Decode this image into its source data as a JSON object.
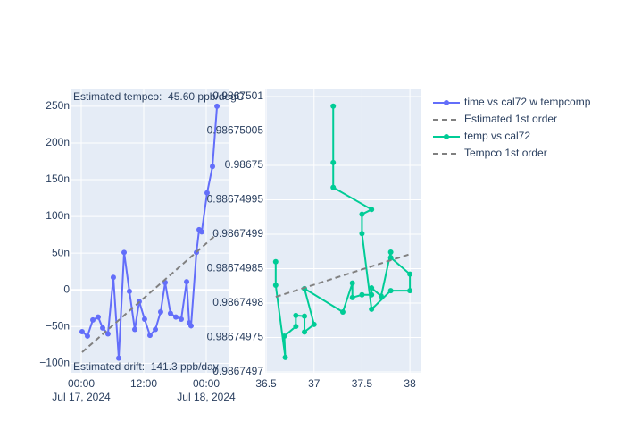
{
  "chart_data": [
    {
      "type": "line",
      "xlim": [
        "2024-07-16T22:07",
        "2024-07-18T04:17"
      ],
      "xticks": [
        {
          "value": "2024-07-17T00:00",
          "label": "00:00\nJul 17, 2024"
        },
        {
          "value": "2024-07-17T12:00",
          "label": "12:00"
        },
        {
          "value": "2024-07-18T00:00",
          "label": "00:00\nJul 18, 2024"
        }
      ],
      "ylim": [
        -113,
        273
      ],
      "yticks": [
        {
          "value": -100,
          "label": "−100n"
        },
        {
          "value": -50,
          "label": "−50n"
        },
        0,
        {
          "value": 50,
          "label": "50n"
        },
        {
          "value": 100,
          "label": "100n"
        },
        {
          "value": 150,
          "label": "150n"
        },
        {
          "value": 200,
          "label": "200n"
        },
        {
          "value": 250,
          "label": "250n"
        }
      ],
      "grid": true,
      "annotations": [
        "Estimated tempco:  45.60 ppb/degC",
        "Estimated drift:  141.3 ppb/day"
      ],
      "series": [
        {
          "name": "time vs cal72 w tempcomp",
          "color": "#636efa",
          "markers": true,
          "dash": false,
          "x": [
            "2024-07-17T00:10",
            "2024-07-17T01:12",
            "2024-07-17T02:14",
            "2024-07-17T03:15",
            "2024-07-17T04:07",
            "2024-07-17T05:08",
            "2024-07-17T06:10",
            "2024-07-17T07:12",
            "2024-07-17T08:14",
            "2024-07-17T09:15",
            "2024-07-17T10:17",
            "2024-07-17T11:08",
            "2024-07-17T12:10",
            "2024-07-17T13:12",
            "2024-07-17T14:14",
            "2024-07-17T15:15",
            "2024-07-17T16:07",
            "2024-07-17T17:08",
            "2024-07-17T18:10",
            "2024-07-17T19:12",
            "2024-07-17T20:14",
            "2024-07-17T20:44",
            "2024-07-17T21:05",
            "2024-07-17T22:07",
            "2024-07-17T22:38",
            "2024-07-17T23:08",
            "2024-07-18T00:10",
            "2024-07-18T01:12",
            "2024-07-18T02:04"
          ],
          "values": [
            -57,
            -63,
            -41,
            -37,
            -52,
            -60,
            17,
            -93,
            51,
            -2,
            -54,
            -16,
            -40,
            -62,
            -54,
            -30,
            10,
            -32,
            -37,
            -40,
            11,
            -45,
            -49,
            51,
            82,
            79,
            132,
            168,
            250
          ]
        },
        {
          "name": "Estimated 1st order",
          "color": "#808080",
          "markers": false,
          "dash": true,
          "x": [
            "2024-07-17T00:10",
            "2024-07-18T02:04"
          ],
          "values": [
            -85,
            76
          ]
        }
      ]
    },
    {
      "type": "line",
      "xlim": [
        36.49,
        38.12
      ],
      "xticks": [
        36.5,
        37,
        37.5,
        38
      ],
      "ylim": [
        0.9867496987,
        0.9867501104
      ],
      "yticks": [
        0.9867497,
        0.98674975,
        0.9867498,
        0.98674985,
        0.9867499,
        0.98674995,
        0.98675,
        0.98675005,
        0.9867501
      ],
      "grid": true,
      "series": [
        {
          "name": "temp vs cal72",
          "color": "#00cc96",
          "markers": true,
          "dash": false,
          "x": [
            36.6,
            36.6,
            36.7,
            36.69,
            36.81,
            36.81,
            36.9,
            36.9,
            37.0,
            36.9,
            37.3,
            37.4,
            37.4,
            37.5,
            37.6,
            37.6,
            37.7,
            37.8,
            37.8,
            38.0,
            38.0,
            37.8,
            37.6,
            37.5,
            37.5,
            37.6,
            37.2,
            37.2,
            37.2
          ],
          "values": [
            0.98674986,
            0.986749826,
            0.986749721,
            0.986749752,
            0.986749766,
            0.986749782,
            0.986749781,
            0.986749758,
            0.986749769,
            0.986749821,
            0.986749787,
            0.986749829,
            0.986749808,
            0.986749812,
            0.986749812,
            0.986749822,
            0.98674981,
            0.986749874,
            0.986749866,
            0.986749842,
            0.986749818,
            0.986749818,
            0.986749791,
            0.986749901,
            0.986749929,
            0.986749936,
            0.986749968,
            0.986750004,
            0.986750086
          ]
        },
        {
          "name": "Tempco 1st order",
          "color": "#808080",
          "markers": false,
          "dash": true,
          "x": [
            36.6,
            38.0
          ],
          "values": [
            0.986749809,
            0.986749871
          ]
        }
      ]
    }
  ],
  "legend": "right"
}
